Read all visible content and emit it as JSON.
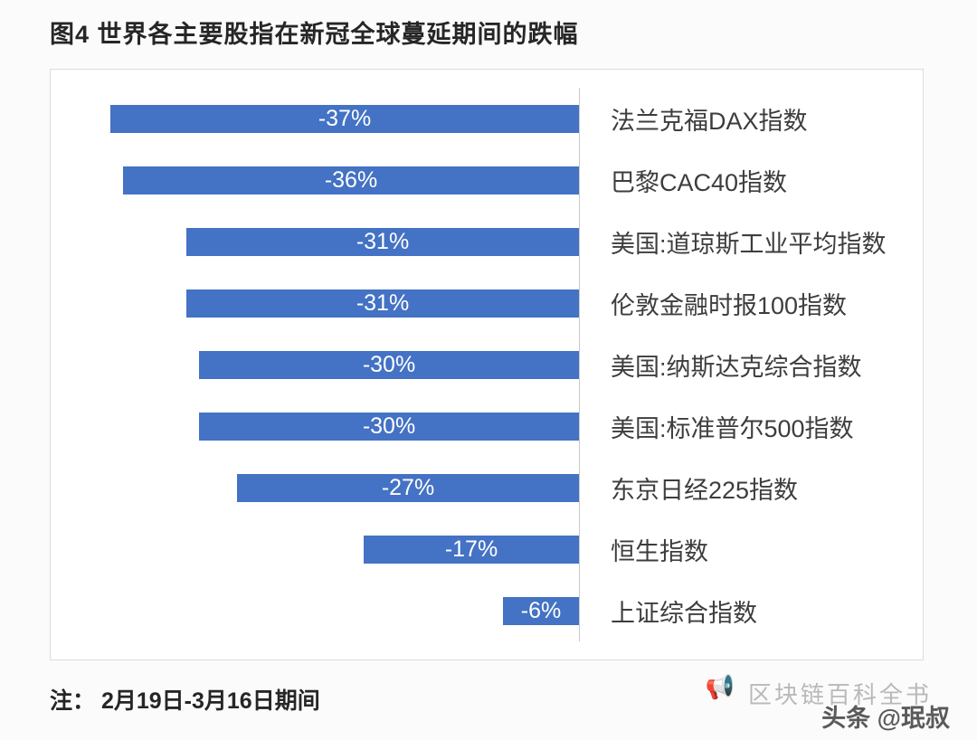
{
  "page": {
    "title": "图4 世界各主要股指在新冠全球蔓延期间的跌幅",
    "note": "注： 2月19日-3月16日期间",
    "watermark_back": "区块链百科全书",
    "watermark_front": "头条 @珉叔"
  },
  "colors": {
    "bar": "#4472c4",
    "value_label": "#ffffff",
    "axis_line": "#c9c9c9"
  },
  "chart_data": {
    "type": "bar",
    "orientation": "horizontal",
    "title": "图4 世界各主要股指在新冠全球蔓延期间的跌幅",
    "note": "注： 2月19日-3月16日期间",
    "categories": [
      "法兰克福DAX指数",
      "巴黎CAC40指数",
      "美国:道琼斯工业平均指数",
      "伦敦金融时报100指数",
      "美国:纳斯达克综合指数",
      "美国:标准普尔500指数",
      "东京日经225指数",
      "恒生指数",
      "上证综合指数"
    ],
    "values": [
      -37,
      -36,
      -31,
      -31,
      -30,
      -30,
      -27,
      -17,
      -6
    ],
    "value_labels": [
      "-37%",
      "-36%",
      "-31%",
      "-31%",
      "-30%",
      "-30%",
      "-27%",
      "-17%",
      "-6%"
    ],
    "xlim": [
      -40,
      0
    ],
    "grid": false,
    "legend": false,
    "value_labels_inside_bars": true,
    "category_labels_position": "right"
  }
}
